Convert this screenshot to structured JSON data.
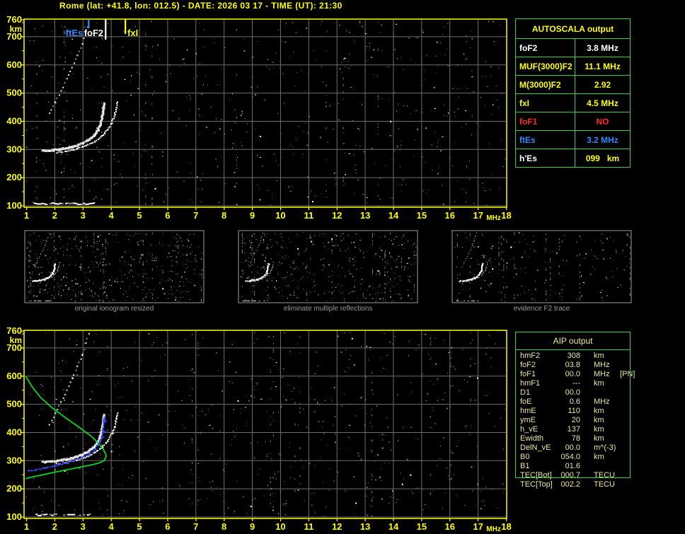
{
  "title": "Rome (lat: +41.8, lon: 012.5) - DATE: 2026 03 17 - TIME (UT): 21:30",
  "colors": {
    "axis_yellow": "#ffff00",
    "grid_grey": "#6e6e6e",
    "panel_border": "#9c9c9c",
    "caption_grey": "#9c9c9c",
    "table_green": "#3ecf3e",
    "trace_white": "#ffffff",
    "profile_green": "#00d822",
    "fitted_blue": "#2a3cee",
    "red": "#ff2a2a",
    "aip_text": "#e9e99a",
    "marker_colors": {
      "ftEs": "#3388ff",
      "foF2": "#ffffff",
      "fxI": "#ffff00"
    }
  },
  "autoscala_table": {
    "header": "AUTOSCALA output",
    "rows": [
      {
        "label": "foF2",
        "value": "3.8 MHz",
        "color": "#ffffff"
      },
      {
        "label": "MUF(3000)F2",
        "value": "11.1 MHz",
        "color": "#ffff00"
      },
      {
        "label": "M(3000)F2",
        "value": "2.92",
        "color": "#ffff00"
      },
      {
        "label": "fxI",
        "value": "4.5 MHz",
        "color": "#ffff00"
      },
      {
        "label": "foF1",
        "value": "NO",
        "color": "#ff2a2a"
      },
      {
        "label": "ftEs",
        "value": "3.2 MHz",
        "color": "#3388ff"
      },
      {
        "label": "h'Es",
        "value": "099   km",
        "color": "#ffff00",
        "label_color": "#ffffff"
      }
    ]
  },
  "panels": [
    {
      "caption": "original ionogram resized",
      "noise": 420
    },
    {
      "caption": "eliminate multiple reflections",
      "noise": 360
    },
    {
      "caption": "evidence F2 trace",
      "noise": 160
    }
  ],
  "aip_table": {
    "header": "AIP output",
    "rows": [
      {
        "label": "hmF2",
        "value": "308",
        "unit": "km",
        "extra": ""
      },
      {
        "label": "foF2",
        "value": "03.8",
        "unit": "MHz",
        "extra": ""
      },
      {
        "label": "foF1",
        "value": "00.0",
        "unit": "MHz",
        "extra": "[PN]"
      },
      {
        "label": "hmF1",
        "value": "---",
        "unit": "km",
        "extra": ""
      },
      {
        "label": "D1",
        "value": "00.0",
        "unit": "",
        "extra": ""
      },
      {
        "label": "foE",
        "value": "0.6",
        "unit": "MHz",
        "extra": ""
      },
      {
        "label": "hmE",
        "value": "110",
        "unit": "km",
        "extra": ""
      },
      {
        "label": "ymE",
        "value": "20",
        "unit": "km",
        "extra": ""
      },
      {
        "label": "h_vE",
        "value": "137",
        "unit": "km",
        "extra": ""
      },
      {
        "label": "Ewidth",
        "value": "78",
        "unit": "km",
        "extra": ""
      },
      {
        "label": "DelN_vE",
        "value": "00.0",
        "unit": "m^(-3)",
        "extra": ""
      },
      {
        "label": "B0",
        "value": "054.0",
        "unit": "km",
        "extra": ""
      },
      {
        "label": "B1",
        "value": "01.6",
        "unit": "",
        "extra": ""
      },
      {
        "label": "TEC[Bot]",
        "value": "000.7",
        "unit": "TECU",
        "extra": ""
      },
      {
        "label": "TEC[Top]",
        "value": "002.2",
        "unit": "TECU",
        "extra": ""
      }
    ]
  },
  "chart_data": [
    {
      "id": "top_ionogram",
      "type": "scatter",
      "title": "scaled ionogram",
      "xlabel": "MHz",
      "ylabel": "km",
      "x_range": [
        1,
        18
      ],
      "y_range": [
        100,
        760
      ],
      "x_ticks": [
        1,
        2,
        3,
        4,
        5,
        6,
        7,
        8,
        9,
        10,
        11,
        12,
        13,
        14,
        15,
        16,
        17,
        18
      ],
      "y_ticks": [
        760,
        700,
        600,
        500,
        400,
        300,
        200,
        100
      ],
      "grid": true,
      "markers": [
        {
          "label": "ftEs",
          "freq_mhz": 3.2
        },
        {
          "label": "foF2",
          "freq_mhz": 3.8
        },
        {
          "label": "fxI",
          "freq_mhz": 4.5
        }
      ],
      "traces": {
        "f2_o_mode": [
          [
            1.55,
            299
          ],
          [
            1.9,
            301
          ],
          [
            2.25,
            306
          ],
          [
            2.6,
            313
          ],
          [
            2.9,
            323
          ],
          [
            3.15,
            336
          ],
          [
            3.35,
            352
          ],
          [
            3.5,
            372
          ],
          [
            3.6,
            398
          ],
          [
            3.66,
            425
          ],
          [
            3.7,
            452
          ],
          [
            3.72,
            466
          ]
        ],
        "f2_x_mode": [
          [
            2.05,
            291
          ],
          [
            2.4,
            296
          ],
          [
            2.75,
            304
          ],
          [
            3.1,
            316
          ],
          [
            3.4,
            331
          ],
          [
            3.65,
            350
          ],
          [
            3.85,
            372
          ],
          [
            4.0,
            397
          ],
          [
            4.1,
            425
          ],
          [
            4.16,
            452
          ],
          [
            4.19,
            470
          ]
        ],
        "es_layer": [
          [
            1.25,
            110
          ],
          [
            3.35,
            110
          ]
        ],
        "second_reflection": [
          [
            1.8,
            430
          ],
          [
            2.0,
            470
          ],
          [
            2.2,
            510
          ],
          [
            2.4,
            552
          ],
          [
            2.6,
            594
          ],
          [
            2.78,
            636
          ],
          [
            2.95,
            678
          ],
          [
            3.08,
            718
          ],
          [
            3.18,
            752
          ]
        ]
      }
    },
    {
      "id": "bottom_ionogram_with_profile",
      "type": "scatter",
      "title": "restored trace and electron density profile",
      "xlabel": "MHz",
      "ylabel": "km",
      "x_range": [
        1,
        18
      ],
      "y_range": [
        100,
        760
      ],
      "x_ticks": [
        1,
        2,
        3,
        4,
        5,
        6,
        7,
        8,
        9,
        10,
        11,
        12,
        13,
        14,
        15,
        16,
        17,
        18
      ],
      "y_ticks": [
        760,
        700,
        600,
        500,
        400,
        300,
        200,
        100
      ],
      "grid": true,
      "traces": {
        "f2_o_mode": [
          [
            1.55,
            299
          ],
          [
            1.9,
            301
          ],
          [
            2.25,
            306
          ],
          [
            2.6,
            313
          ],
          [
            2.9,
            323
          ],
          [
            3.15,
            336
          ],
          [
            3.35,
            352
          ],
          [
            3.5,
            372
          ],
          [
            3.6,
            398
          ],
          [
            3.66,
            425
          ],
          [
            3.7,
            452
          ],
          [
            3.72,
            466
          ]
        ],
        "f2_x_mode": [
          [
            2.05,
            291
          ],
          [
            2.4,
            296
          ],
          [
            2.75,
            304
          ],
          [
            3.1,
            316
          ],
          [
            3.4,
            331
          ],
          [
            3.65,
            350
          ],
          [
            3.85,
            372
          ],
          [
            4.0,
            397
          ],
          [
            4.1,
            425
          ],
          [
            4.16,
            452
          ],
          [
            4.19,
            470
          ]
        ],
        "es_layer": [
          [
            1.25,
            110
          ],
          [
            3.35,
            110
          ]
        ],
        "second_reflection": [
          [
            1.8,
            430
          ],
          [
            2.0,
            470
          ],
          [
            2.2,
            510
          ],
          [
            2.4,
            552
          ],
          [
            2.6,
            594
          ],
          [
            2.78,
            636
          ],
          [
            2.95,
            678
          ],
          [
            3.08,
            718
          ],
          [
            3.18,
            752
          ]
        ]
      },
      "profile_green": [
        [
          0.97,
          600
        ],
        [
          1.2,
          562
        ],
        [
          1.5,
          524
        ],
        [
          1.9,
          488
        ],
        [
          2.4,
          451
        ],
        [
          2.9,
          416
        ],
        [
          3.3,
          386
        ],
        [
          3.55,
          362
        ],
        [
          3.72,
          340
        ],
        [
          3.81,
          322
        ],
        [
          3.82,
          314
        ],
        [
          3.75,
          300
        ],
        [
          3.55,
          291
        ],
        [
          3.25,
          284
        ],
        [
          2.85,
          276
        ],
        [
          2.4,
          267
        ],
        [
          1.95,
          258
        ],
        [
          1.5,
          248
        ],
        [
          1.1,
          240
        ],
        [
          0.97,
          236
        ]
      ],
      "fitted_f2_blue": [
        [
          1.02,
          266
        ],
        [
          1.35,
          271
        ],
        [
          1.7,
          278
        ],
        [
          2.05,
          286
        ],
        [
          2.4,
          295
        ],
        [
          2.7,
          304
        ],
        [
          2.95,
          314
        ],
        [
          3.2,
          326
        ],
        [
          3.38,
          340
        ],
        [
          3.5,
          356
        ],
        [
          3.58,
          372
        ],
        [
          3.64,
          390
        ],
        [
          3.68,
          410
        ],
        [
          3.7,
          428
        ],
        [
          3.72,
          446
        ],
        [
          3.73,
          458
        ]
      ],
      "fitted_plus_markers": [
        [
          3.78,
          441
        ],
        [
          3.73,
          404
        ],
        [
          3.68,
          384
        ]
      ]
    }
  ]
}
